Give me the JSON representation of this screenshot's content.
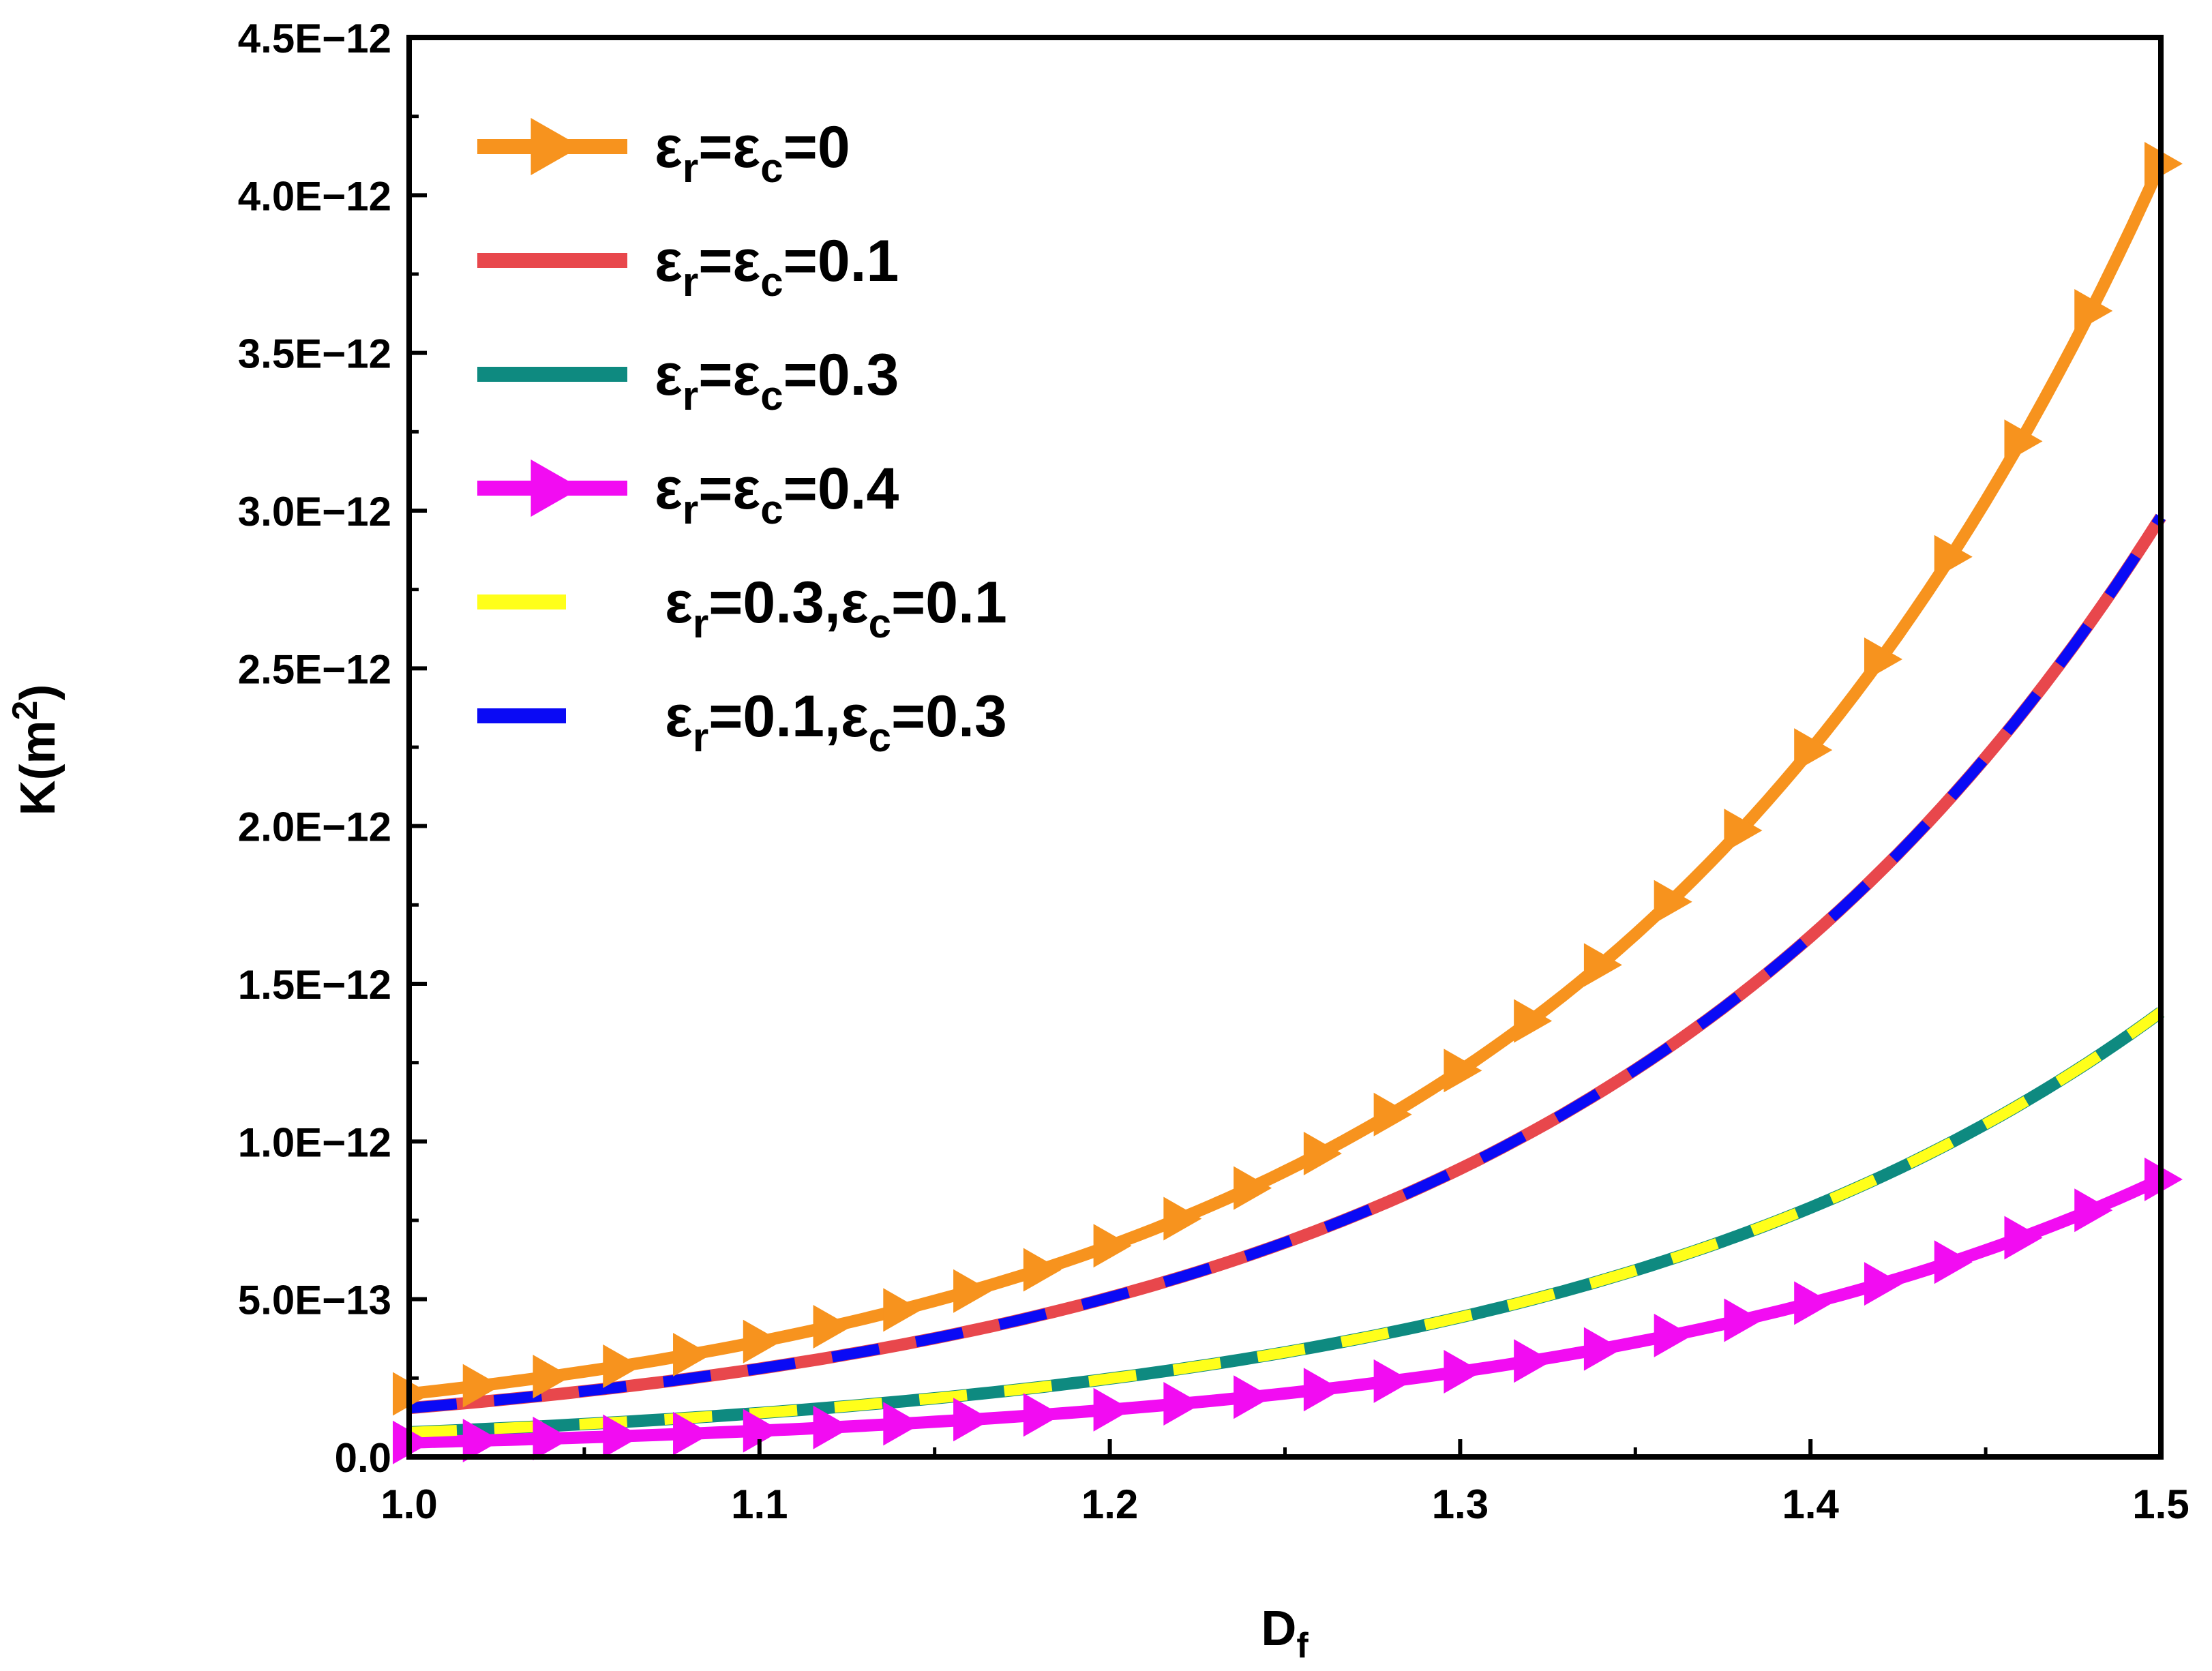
{
  "chart_data": {
    "type": "line",
    "title": "",
    "xlabel": "D",
    "xlabel_sub": "f",
    "ylabel": "K(m",
    "ylabel_sup": "2",
    "ylabel_end": ")",
    "xlim": [
      1.0,
      1.5
    ],
    "ylim": [
      0,
      4.5e-12
    ],
    "xticks": [
      1.0,
      1.1,
      1.2,
      1.3,
      1.4,
      1.5
    ],
    "xtick_labels": [
      "1.0",
      "1.1",
      "1.2",
      "1.3",
      "1.4",
      "1.5"
    ],
    "yticks": [
      0,
      5e-13,
      1e-12,
      1.5e-12,
      2e-12,
      2.5e-12,
      3e-12,
      3.5e-12,
      4e-12,
      4.5e-12
    ],
    "ytick_labels": [
      "0.0",
      "5.0E−13",
      "1.0E−12",
      "1.5E−12",
      "2.0E−12",
      "2.5E−12",
      "3.0E−12",
      "3.5E−12",
      "4.0E−12",
      "4.5E−12"
    ],
    "legend_position": "top-left",
    "series": [
      {
        "name": "εr=εc=0",
        "label_parts": [
          "ε",
          "r",
          "=ε",
          "c",
          "=0"
        ],
        "color": "#F7931E",
        "style": "solid",
        "marker": "triangle-right",
        "k0": 2e-13,
        "k1": 4.1e-12
      },
      {
        "name": "εr=εc=0.1",
        "label_parts": [
          "ε",
          "r",
          "=ε",
          "c",
          "=0.1"
        ],
        "color": "#E8474C",
        "style": "solid",
        "marker": "none",
        "k0": 1.55e-13,
        "k1": 2.98e-12
      },
      {
        "name": "εr=εc=0.3",
        "label_parts": [
          "ε",
          "r",
          "=ε",
          "c",
          "=0.3"
        ],
        "color": "#0E8A80",
        "style": "solid",
        "marker": "none",
        "k0": 7.8e-14,
        "k1": 1.41e-12
      },
      {
        "name": "εr=εc=0.4",
        "label_parts": [
          "ε",
          "r",
          "=ε",
          "c",
          "=0.4"
        ],
        "color": "#F20CF2",
        "style": "solid",
        "marker": "triangle-right",
        "k0": 4.6e-14,
        "k1": 8.8e-13
      },
      {
        "name": "εr=0.3,εc=0.1",
        "label_parts": [
          "ε",
          "r",
          "=0.3,ε",
          "c",
          "=0.1"
        ],
        "color": "#FFFF1A",
        "style": "dash",
        "marker": "none",
        "k0": 7.8e-14,
        "k1": 1.41e-12
      },
      {
        "name": "εr=0.1,εc=0.3",
        "label_parts": [
          "ε",
          "r",
          "=0.1,ε",
          "c",
          "=0.3"
        ],
        "color": "#0A0AF5",
        "style": "dash",
        "marker": "none",
        "k0": 1.55e-13,
        "k1": 2.98e-12
      }
    ]
  }
}
